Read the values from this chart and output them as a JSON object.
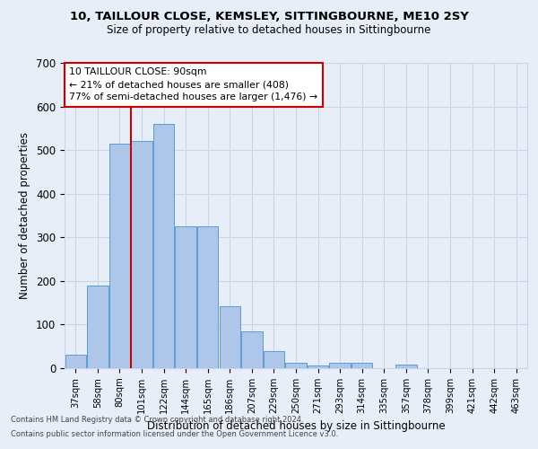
{
  "title_line1": "10, TAILLOUR CLOSE, KEMSLEY, SITTINGBOURNE, ME10 2SY",
  "title_line2": "Size of property relative to detached houses in Sittingbourne",
  "xlabel": "Distribution of detached houses by size in Sittingbourne",
  "ylabel": "Number of detached properties",
  "categories": [
    "37sqm",
    "58sqm",
    "80sqm",
    "101sqm",
    "122sqm",
    "144sqm",
    "165sqm",
    "186sqm",
    "207sqm",
    "229sqm",
    "250sqm",
    "271sqm",
    "293sqm",
    "314sqm",
    "335sqm",
    "357sqm",
    "378sqm",
    "399sqm",
    "421sqm",
    "442sqm",
    "463sqm"
  ],
  "values": [
    30,
    190,
    515,
    520,
    560,
    325,
    325,
    143,
    85,
    40,
    13,
    7,
    13,
    13,
    0,
    8,
    0,
    0,
    0,
    0,
    0
  ],
  "bar_color": "#aec6e8",
  "bar_edge_color": "#5b9bd5",
  "grid_color": "#c8d4e8",
  "background_color": "#e8eef8",
  "annotation_box_text": "10 TAILLOUR CLOSE: 90sqm\n← 21% of detached houses are smaller (408)\n77% of semi-detached houses are larger (1,476) →",
  "annotation_box_color": "#ffffff",
  "annotation_box_edge_color": "#cc0000",
  "property_line_x": 2.5,
  "ylim": [
    0,
    700
  ],
  "yticks": [
    0,
    100,
    200,
    300,
    400,
    500,
    600,
    700
  ],
  "footer_line1": "Contains HM Land Registry data © Crown copyright and database right 2024.",
  "footer_line2": "Contains public sector information licensed under the Open Government Licence v3.0."
}
